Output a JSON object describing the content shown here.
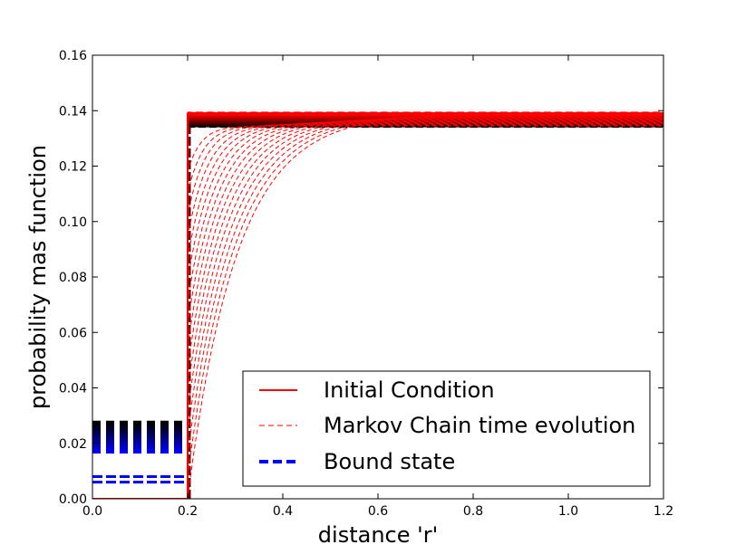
{
  "chart_data": {
    "type": "line",
    "title": "",
    "xlabel": "distance 'r'",
    "ylabel": "probability mas function",
    "xlim": [
      0.0,
      1.2
    ],
    "ylim": [
      0.0,
      0.16
    ],
    "x_ticks": [
      "0.0",
      "0.2",
      "0.4",
      "0.6",
      "0.8",
      "1.0",
      "1.2"
    ],
    "y_ticks": [
      "0.00",
      "0.02",
      "0.04",
      "0.06",
      "0.08",
      "0.10",
      "0.12",
      "0.14",
      "0.16"
    ],
    "legend_position": "lower-right",
    "series": [
      {
        "name": "Initial Condition",
        "style": "solid",
        "color": "#ff0000",
        "x": [
          0.0,
          0.2,
          0.2,
          1.2
        ],
        "y": [
          0.0,
          0.0,
          0.139,
          0.139
        ]
      },
      {
        "name": "Markov Chain time evolution",
        "style": "dashed",
        "color": "#ff0000",
        "description": "family of relaxation curves rising from ~0.0 at r=0.2 toward ~0.139",
        "x": [
          0.2,
          0.25,
          0.3,
          0.35,
          0.4,
          0.5,
          0.6,
          0.7,
          0.8,
          1.0,
          1.2
        ],
        "y": [
          0.0,
          0.07,
          0.098,
          0.113,
          0.121,
          0.129,
          0.133,
          0.135,
          0.136,
          0.137,
          0.137
        ]
      },
      {
        "name": "Bound state",
        "style": "dashed",
        "color": "#0000ff",
        "x": [
          0.0,
          0.2
        ],
        "y": [
          0.006,
          0.006
        ]
      }
    ],
    "bound_state_levels": [
      0.006,
      0.008,
      0.01,
      0.012,
      0.014,
      0.016,
      0.018,
      0.02,
      0.022,
      0.024,
      0.026,
      0.0275
    ],
    "unbound_plateau_range": [
      0.1345,
      0.139
    ],
    "colors": {
      "initial": "#ff0000",
      "evolution": "#ff0000",
      "bound": "#0000ff",
      "evolution_dark": "#000000"
    }
  }
}
